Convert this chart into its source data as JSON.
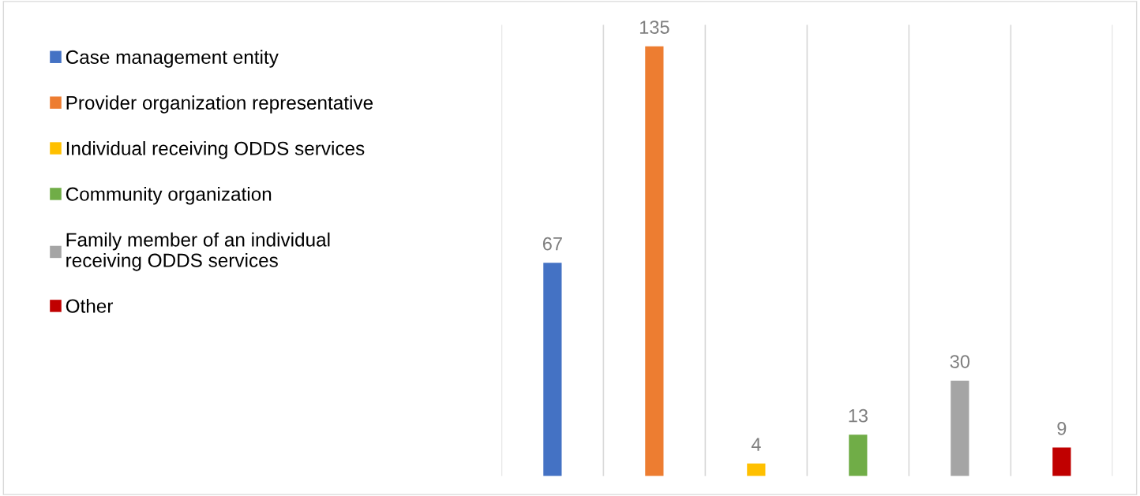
{
  "chart_data": {
    "type": "bar",
    "stacked": true,
    "categories": [
      null,
      null,
      null,
      null,
      null,
      null
    ],
    "series": [
      {
        "name": "Case management entity",
        "color": "#4472c4",
        "values": [
          67,
          null,
          null,
          null,
          null,
          null
        ]
      },
      {
        "name": "Provider organization representative",
        "color": "#ed7d31",
        "values": [
          null,
          135,
          null,
          null,
          null,
          null
        ]
      },
      {
        "name": "Individual receiving ODDS services",
        "color": "#ffc000",
        "values": [
          null,
          null,
          4,
          null,
          null,
          null
        ]
      },
      {
        "name": "Community organization",
        "color": "#70ad47",
        "values": [
          null,
          null,
          null,
          13,
          null,
          null
        ]
      },
      {
        "name": "Family member of an individual\nreceiving ODDS services",
        "color": "#a5a5a5",
        "values": [
          null,
          null,
          null,
          null,
          30,
          null
        ]
      },
      {
        "name": "Other",
        "color": "#c00000",
        "values": [
          null,
          null,
          null,
          null,
          null,
          9
        ]
      }
    ],
    "data_labels": true,
    "grid": "x",
    "legend": "left"
  }
}
